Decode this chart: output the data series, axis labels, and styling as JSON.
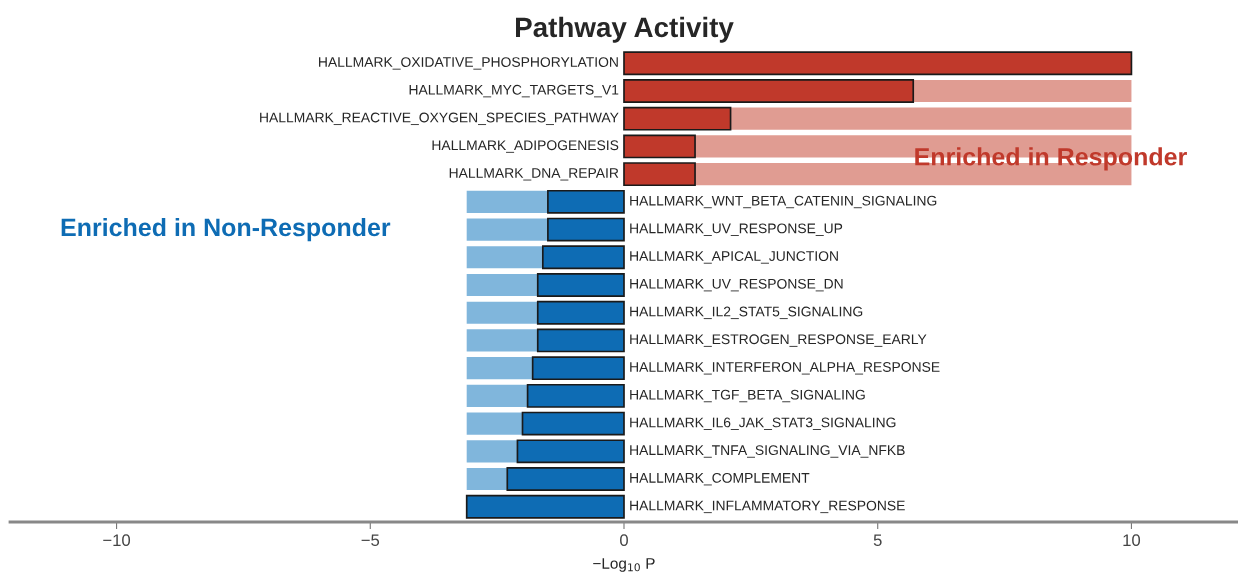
{
  "chart_data": {
    "type": "bar",
    "orientation": "horizontal",
    "title": "Pathway Activity",
    "xlabel": "−Log$_{10}$ P",
    "categories": [
      "HALLMARK_OXIDATIVE_PHOSPHORYLATION",
      "HALLMARK_MYC_TARGETS_V1",
      "HALLMARK_REACTIVE_OXYGEN_SPECIES_PATHWAY",
      "HALLMARK_ADIPOGENESIS",
      "HALLMARK_DNA_REPAIR",
      "HALLMARK_WNT_BETA_CATENIN_SIGNALING",
      "HALLMARK_UV_RESPONSE_UP",
      "HALLMARK_APICAL_JUNCTION",
      "HALLMARK_UV_RESPONSE_DN",
      "HALLMARK_IL2_STAT5_SIGNALING",
      "HALLMARK_ESTROGEN_RESPONSE_EARLY",
      "HALLMARK_INTERFERON_ALPHA_RESPONSE",
      "HALLMARK_TGF_BETA_SIGNALING",
      "HALLMARK_IL6_JAK_STAT3_SIGNALING",
      "HALLMARK_TNFA_SIGNALING_VIA_NFKB",
      "HALLMARK_COMPLEMENT",
      "HALLMARK_INFLAMMATORY_RESPONSE"
    ],
    "series": [
      {
        "colors": [
          "#c0392b",
          "#c0392b",
          "#c0392b",
          "#c0392b",
          "#c0392b",
          "#0e6cb4",
          "#0e6cb4",
          "#0e6cb4",
          "#0e6cb4",
          "#0e6cb4",
          "#0e6cb4",
          "#0e6cb4",
          "#0e6cb4",
          "#0e6cb4",
          "#0e6cb4",
          "#0e6cb4",
          "#0e6cb4"
        ],
        "values": [
          10,
          5.7,
          2.1,
          1.4,
          1.4,
          -1.5,
          -1.5,
          -1.6,
          -1.7,
          -1.7,
          -1.7,
          -1.8,
          -1.9,
          -2.0,
          -2.1,
          -2.3,
          -3.1
        ]
      },
      {
        "colors": [
          "#e09c92",
          "#e09c92",
          "#e09c92",
          "#e09c92",
          "#e09c92",
          "#80b6dc",
          "#80b6dc",
          "#80b6dc",
          "#80b6dc",
          "#80b6dc",
          "#80b6dc",
          "#80b6dc",
          "#80b6dc",
          "#80b6dc",
          "#80b6dc",
          "#80b6dc",
          "#80b6dc"
        ],
        "values": [
          null,
          4.3,
          7.9,
          8.6,
          8.6,
          -1.6,
          -1.6,
          -1.5,
          -1.4,
          -1.4,
          -1.4,
          -1.3,
          -1.2,
          -1.1,
          -1.0,
          -0.8,
          null
        ]
      }
    ],
    "stacked": true,
    "xlim": [
      -12.1,
      12.1
    ],
    "xticks": [
      {
        "value": -10,
        "label": "−10"
      },
      {
        "value": -5,
        "label": "−5"
      },
      0,
      5,
      10
    ],
    "annotations": [
      "Enriched in Responder",
      "Enriched in Non-Responder"
    ],
    "grid": false,
    "legend": false
  }
}
